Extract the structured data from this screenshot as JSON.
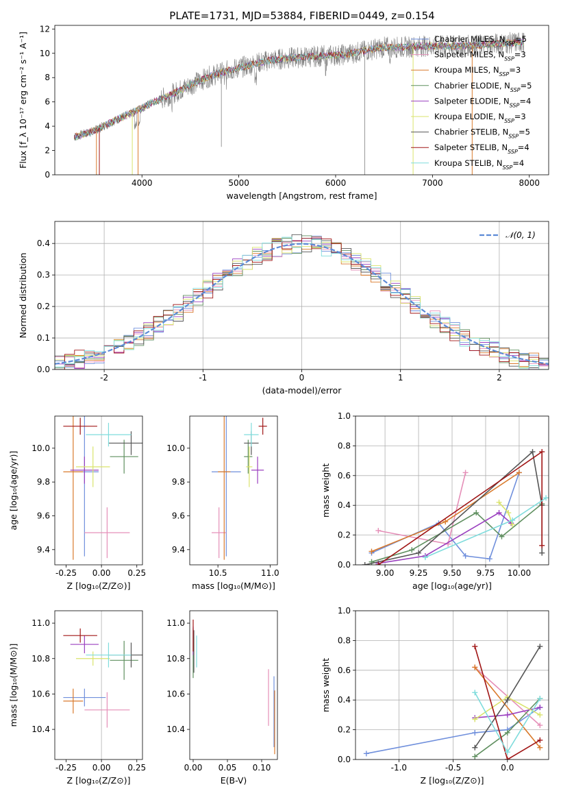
{
  "figure_title": "PLATE=1731, MJD=53884, FIBERID=0449, z=0.154",
  "colors": {
    "Chabrier MILES": "#6f8fdc",
    "Salpeter MILES": "#e58fb8",
    "Kroupa MILES": "#d97a2b",
    "Chabrier ELODIE": "#5f8f5f",
    "Salpeter ELODIE": "#9a3fbf",
    "Kroupa ELODIE": "#d9e36b",
    "Chabrier STELIB": "#555555",
    "Salpeter STELIB": "#a01515",
    "Kroupa STELIB": "#7fdcdc",
    "data": "#808080",
    "normal": "#5b8ad6"
  },
  "chart_data": [
    {
      "type": "line",
      "title": "PLATE=1731, MJD=53884, FIBERID=0449, z=0.154",
      "xlabel": "wavelength [Angstrom, rest frame]",
      "ylabel": "Flux [f_λ 10⁻¹⁷ erg cm⁻² s⁻¹ A⁻¹]",
      "xlim": [
        3100,
        8200
      ],
      "ylim": [
        0,
        12.3
      ],
      "xticks": [
        4000,
        5000,
        6000,
        7000,
        8000
      ],
      "yticks": [
        0,
        2,
        4,
        6,
        8,
        10,
        12
      ],
      "legend_position": "right",
      "legend": [
        {
          "name": "Chabrier MILES",
          "nssp": "=5"
        },
        {
          "name": "Salpeter MILES",
          "nssp": "=3"
        },
        {
          "name": "Kroupa MILES",
          "nssp": "=3"
        },
        {
          "name": "Chabrier ELODIE",
          "nssp": "=5"
        },
        {
          "name": "Salpeter ELODIE",
          "nssp": "=4"
        },
        {
          "name": "Kroupa ELODIE",
          "nssp": "=3"
        },
        {
          "name": "Chabrier STELIB",
          "nssp": "=5"
        },
        {
          "name": "Salpeter STELIB",
          "nssp": "=4"
        },
        {
          "name": "Kroupa STELIB",
          "nssp": "=4"
        }
      ],
      "spectrum_envelope": {
        "x": [
          3300,
          3500,
          3700,
          3900,
          4100,
          4300,
          4500,
          4700,
          4900,
          5100,
          5300,
          5500,
          5700,
          5900,
          6100,
          6300,
          6500,
          6700,
          6900,
          7100,
          7300,
          7500,
          7700,
          7900
        ],
        "y": [
          3.1,
          3.6,
          4.4,
          5.1,
          5.9,
          6.6,
          7.4,
          8.1,
          8.6,
          9.0,
          9.4,
          9.6,
          9.7,
          9.8,
          9.9,
          10.2,
          10.5,
          10.5,
          10.6,
          10.6,
          10.6,
          10.7,
          10.8,
          10.9
        ]
      }
    },
    {
      "type": "histogram",
      "xlabel": "(data-model)/error",
      "ylabel": "Normed distribution",
      "xlim": [
        -2.5,
        2.5
      ],
      "ylim": [
        0,
        0.47
      ],
      "xticks": [
        -2,
        -1,
        0,
        1,
        2
      ],
      "yticks": [
        0.0,
        0.1,
        0.2,
        0.3,
        0.4
      ],
      "grid": true,
      "legend": [
        "𝒩(0, 1)"
      ],
      "legend_position": "top-right",
      "bin_width": 0.1
    },
    {
      "type": "scatter",
      "xlabel": "Z [log₁₀(Z/Z⊙)]",
      "ylabel": "age  [log₁₀(age/yr)]",
      "xlim": [
        -0.33,
        0.29
      ],
      "ylim": [
        9.31,
        10.19
      ],
      "xticks": [
        -0.25,
        0.0,
        0.25
      ],
      "yticks": [
        9.4,
        9.6,
        9.8,
        10.0
      ],
      "points": [
        {
          "model": "Chabrier MILES",
          "x": -0.12,
          "xerr": 0.1,
          "y": 9.86,
          "yerr": 0.5
        },
        {
          "model": "Salpeter MILES",
          "x": 0.04,
          "xerr": 0.16,
          "y": 9.5,
          "yerr": 0.15
        },
        {
          "model": "Kroupa MILES",
          "x": -0.2,
          "xerr": 0.07,
          "y": 9.86,
          "yerr": 0.52
        },
        {
          "model": "Chabrier ELODIE",
          "x": 0.16,
          "xerr": 0.1,
          "y": 9.95,
          "yerr": 0.1
        },
        {
          "model": "Salpeter ELODIE",
          "x": -0.12,
          "xerr": 0.1,
          "y": 9.87,
          "yerr": 0.08
        },
        {
          "model": "Kroupa ELODIE",
          "x": -0.06,
          "xerr": 0.12,
          "y": 9.89,
          "yerr": 0.12
        },
        {
          "model": "Chabrier STELIB",
          "x": 0.21,
          "xerr": 0.16,
          "y": 10.03,
          "yerr": 0.07
        },
        {
          "model": "Salpeter STELIB",
          "x": -0.15,
          "xerr": 0.12,
          "y": 10.13,
          "yerr": 0.05
        },
        {
          "model": "Kroupa STELIB",
          "x": 0.05,
          "xerr": 0.16,
          "y": 10.08,
          "yerr": 0.07
        }
      ]
    },
    {
      "type": "scatter",
      "xlabel": "mass [log₁₀(M/M⊙)]",
      "ylabel": "",
      "xlim": [
        10.23,
        11.07
      ],
      "ylim": [
        9.31,
        10.19
      ],
      "xticks": [
        10.5,
        11.0
      ],
      "yticks": [
        9.4,
        9.6,
        9.8,
        10.0
      ],
      "points": [
        {
          "model": "Chabrier MILES",
          "x": 10.58,
          "xerr": 0.14,
          "y": 9.86,
          "yerr": 0.5
        },
        {
          "model": "Salpeter MILES",
          "x": 10.51,
          "xerr": 0.07,
          "y": 9.5,
          "yerr": 0.15
        },
        {
          "model": "Kroupa MILES",
          "x": 10.56,
          "xerr": 0.06,
          "y": 9.86,
          "yerr": 0.52
        },
        {
          "model": "Chabrier ELODIE",
          "x": 10.79,
          "xerr": 0.04,
          "y": 9.95,
          "yerr": 0.1
        },
        {
          "model": "Salpeter ELODIE",
          "x": 10.88,
          "xerr": 0.06,
          "y": 9.87,
          "yerr": 0.08
        },
        {
          "model": "Kroupa ELODIE",
          "x": 10.8,
          "xerr": 0.03,
          "y": 9.89,
          "yerr": 0.12
        },
        {
          "model": "Chabrier STELIB",
          "x": 10.82,
          "xerr": 0.07,
          "y": 10.03,
          "yerr": 0.07
        },
        {
          "model": "Salpeter STELIB",
          "x": 10.93,
          "xerr": 0.04,
          "y": 10.13,
          "yerr": 0.05
        },
        {
          "model": "Kroupa STELIB",
          "x": 10.82,
          "xerr": 0.07,
          "y": 10.08,
          "yerr": 0.07
        }
      ]
    },
    {
      "type": "line",
      "xlabel": "age  [log₁₀(age/yr)]",
      "ylabel": "mass weight",
      "xlim": [
        8.78,
        10.22
      ],
      "ylim": [
        0,
        1.0
      ],
      "xticks": [
        9.0,
        9.25,
        9.5,
        9.75,
        10.0
      ],
      "yticks": [
        0.0,
        0.2,
        0.4,
        0.6,
        0.8,
        1.0
      ],
      "grid": true,
      "series": [
        {
          "model": "Chabrier MILES",
          "x": [
            8.9,
            9.4,
            9.6,
            9.78,
            10.0
          ],
          "y": [
            0.08,
            0.28,
            0.06,
            0.04,
            0.62
          ]
        },
        {
          "model": "Salpeter MILES",
          "x": [
            8.95,
            9.47,
            9.6
          ],
          "y": [
            0.23,
            0.14,
            0.62
          ]
        },
        {
          "model": "Kroupa MILES",
          "x": [
            8.9,
            9.45,
            10.0
          ],
          "y": [
            0.09,
            0.29,
            0.62
          ]
        },
        {
          "model": "Chabrier ELODIE",
          "x": [
            8.9,
            9.2,
            9.68,
            9.87,
            10.17
          ],
          "y": [
            0.02,
            0.1,
            0.35,
            0.19,
            0.41
          ]
        },
        {
          "model": "Salpeter ELODIE",
          "x": [
            8.95,
            9.3,
            9.85,
            9.94
          ],
          "y": [
            0.01,
            0.06,
            0.35,
            0.28
          ]
        },
        {
          "model": "Kroupa ELODIE",
          "x": [
            9.85,
            9.92,
            9.95
          ],
          "y": [
            0.42,
            0.35,
            0.27
          ]
        },
        {
          "model": "Chabrier STELIB",
          "x": [
            8.85,
            9.25,
            10.1,
            10.17,
            10.17
          ],
          "y": [
            0.0,
            0.08,
            0.76,
            0.4,
            0.08
          ]
        },
        {
          "model": "Salpeter STELIB",
          "x": [
            8.95,
            10.17,
            10.17
          ],
          "y": [
            0.0,
            0.76,
            0.13
          ]
        },
        {
          "model": "Kroupa STELIB",
          "x": [
            9.3,
            9.95,
            10.2
          ],
          "y": [
            0.05,
            0.3,
            0.45
          ]
        }
      ]
    },
    {
      "type": "scatter",
      "xlabel": "Z [log₁₀(Z/Z⊙)]",
      "ylabel": "mass [log₁₀(M/M⊙)]",
      "xlim": [
        -0.33,
        0.29
      ],
      "ylim": [
        10.23,
        11.07
      ],
      "xticks": [
        -0.25,
        0.0,
        0.25
      ],
      "yticks": [
        10.4,
        10.6,
        10.8,
        11.0
      ],
      "points": [
        {
          "model": "Chabrier MILES",
          "x": -0.12,
          "xerr": 0.15,
          "y": 10.58,
          "yerr": 0.05
        },
        {
          "model": "Salpeter MILES",
          "x": 0.04,
          "xerr": 0.16,
          "y": 10.51,
          "yerr": 0.1
        },
        {
          "model": "Kroupa MILES",
          "x": -0.2,
          "xerr": 0.07,
          "y": 10.56,
          "yerr": 0.07
        },
        {
          "model": "Chabrier ELODIE",
          "x": 0.16,
          "xerr": 0.1,
          "y": 10.79,
          "yerr": 0.11
        },
        {
          "model": "Salpeter ELODIE",
          "x": -0.12,
          "xerr": 0.1,
          "y": 10.88,
          "yerr": 0.05
        },
        {
          "model": "Kroupa ELODIE",
          "x": -0.06,
          "xerr": 0.12,
          "y": 10.8,
          "yerr": 0.04
        },
        {
          "model": "Chabrier STELIB",
          "x": 0.21,
          "xerr": 0.16,
          "y": 10.82,
          "yerr": 0.07
        },
        {
          "model": "Salpeter STELIB",
          "x": -0.15,
          "xerr": 0.12,
          "y": 10.93,
          "yerr": 0.04
        },
        {
          "model": "Kroupa STELIB",
          "x": 0.05,
          "xerr": 0.16,
          "y": 10.82,
          "yerr": 0.07
        }
      ]
    },
    {
      "type": "scatter",
      "xlabel": "E(B-V)",
      "ylabel": "",
      "xlim": [
        -0.005,
        0.123
      ],
      "ylim": [
        10.23,
        11.07
      ],
      "xticks": [
        0.0,
        0.05,
        0.1
      ],
      "yticks": [
        10.4,
        10.6,
        10.8,
        11.0
      ],
      "points": [
        {
          "model": "Chabrier MILES",
          "x": 0.118,
          "y": 10.5,
          "yerr": 0.2
        },
        {
          "model": "Salpeter MILES",
          "x": 0.11,
          "y": 10.58,
          "yerr": 0.16
        },
        {
          "model": "Kroupa MILES",
          "x": 0.119,
          "y": 10.44,
          "yerr": 0.18
        },
        {
          "model": "Chabrier ELODIE",
          "x": 0.0,
          "y": 10.83,
          "yerr": 0.14
        },
        {
          "model": "Salpeter ELODIE",
          "x": 0.0,
          "y": 10.9,
          "yerr": 0.08
        },
        {
          "model": "Kroupa ELODIE",
          "x": 0.001,
          "y": 10.87,
          "yerr": 0.05
        },
        {
          "model": "Chabrier STELIB",
          "x": 0.001,
          "y": 10.84,
          "yerr": 0.12
        },
        {
          "model": "Salpeter STELIB",
          "x": 0.0,
          "y": 10.93,
          "yerr": 0.09
        },
        {
          "model": "Kroupa STELIB",
          "x": 0.005,
          "y": 10.84,
          "yerr": 0.09
        }
      ]
    },
    {
      "type": "line",
      "xlabel": "Z [log₁₀(Z/Z⊙)]",
      "ylabel": "mass weight",
      "xlim": [
        -1.4,
        0.38
      ],
      "ylim": [
        0,
        1.0
      ],
      "xticks": [
        -1.0,
        -0.5,
        0.0
      ],
      "yticks": [
        0.0,
        0.2,
        0.4,
        0.6,
        0.8,
        1.0
      ],
      "grid": true,
      "series": [
        {
          "model": "Chabrier MILES",
          "x": [
            -1.3,
            -0.3,
            0.0,
            0.3
          ],
          "y": [
            0.04,
            0.18,
            0.2,
            0.35
          ]
        },
        {
          "model": "Salpeter MILES",
          "x": [
            -0.3,
            0.3
          ],
          "y": [
            0.62,
            0.23
          ]
        },
        {
          "model": "Kroupa MILES",
          "x": [
            -0.3,
            0.3
          ],
          "y": [
            0.62,
            0.08
          ]
        },
        {
          "model": "Chabrier ELODIE",
          "x": [
            -0.3,
            0.0,
            0.3
          ],
          "y": [
            0.02,
            0.18,
            0.41
          ]
        },
        {
          "model": "Salpeter ELODIE",
          "x": [
            -0.3,
            0.0,
            0.3
          ],
          "y": [
            0.28,
            0.3,
            0.35
          ]
        },
        {
          "model": "Kroupa ELODIE",
          "x": [
            -0.3,
            0.0,
            0.3
          ],
          "y": [
            0.27,
            0.42,
            0.3
          ]
        },
        {
          "model": "Chabrier STELIB",
          "x": [
            -0.3,
            0.0,
            0.3
          ],
          "y": [
            0.08,
            0.4,
            0.76
          ]
        },
        {
          "model": "Salpeter STELIB",
          "x": [
            -0.3,
            0.0,
            0.3
          ],
          "y": [
            0.76,
            0.0,
            0.13
          ]
        },
        {
          "model": "Kroupa STELIB",
          "x": [
            -0.3,
            0.0,
            0.3
          ],
          "y": [
            0.45,
            0.05,
            0.41
          ]
        }
      ]
    }
  ]
}
